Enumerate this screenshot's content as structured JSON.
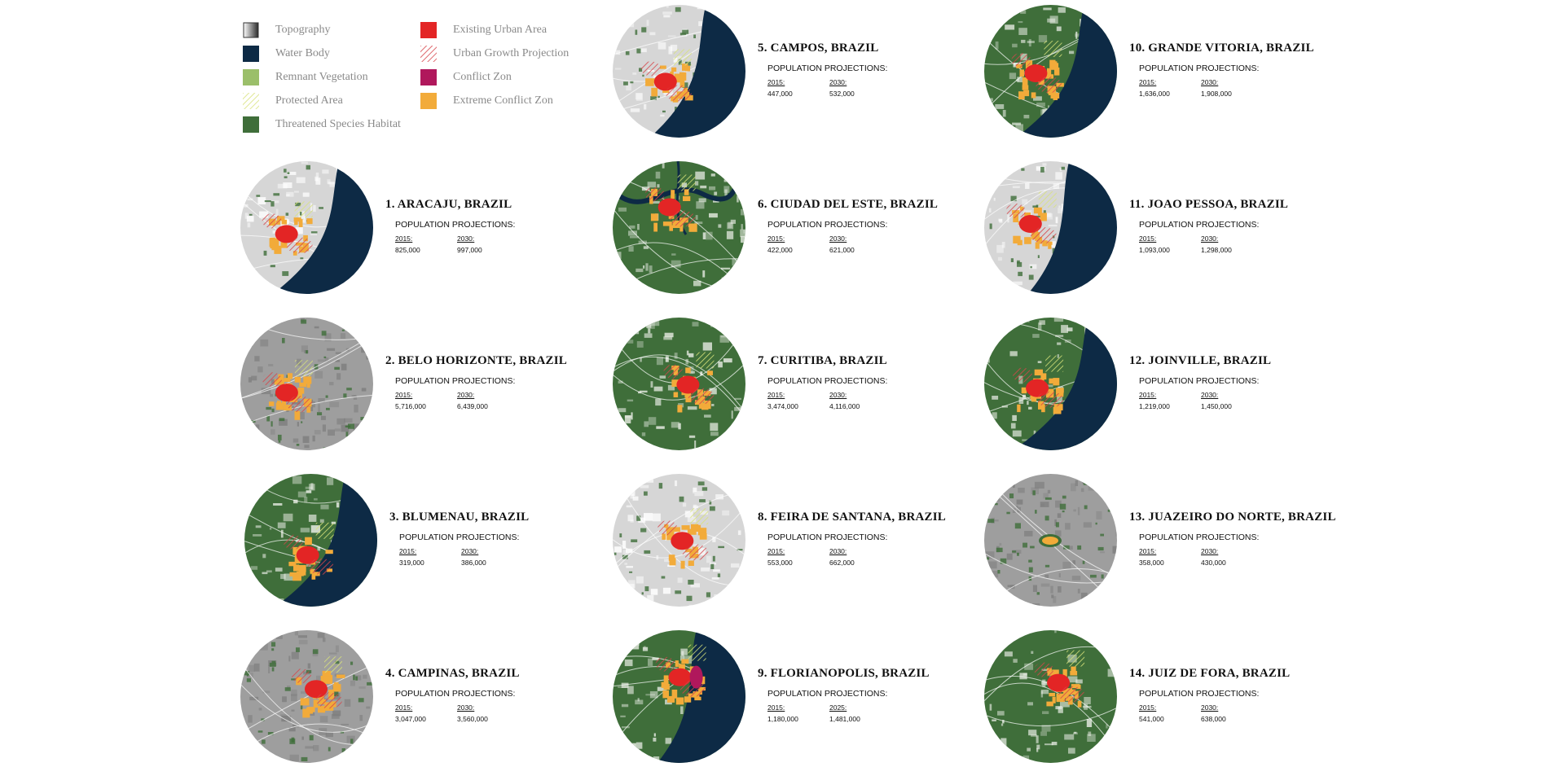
{
  "legend": [
    {
      "label": "Topography",
      "icon": "topography-swatch",
      "color": "#9a9a9a"
    },
    {
      "label": "Water Body",
      "icon": "water-swatch",
      "color": "#0d2a45"
    },
    {
      "label": "Remnant Vegetation",
      "icon": "vegetation-swatch",
      "color": "#9bbf6a"
    },
    {
      "label": "Protected Area",
      "icon": "hatch-yellowgreen-swatch",
      "color": "#d8e27a"
    },
    {
      "label": "Threatened Species Habitat",
      "icon": "habitat-swatch",
      "color": "#3f6e3a"
    },
    {
      "label": "Existing Urban Area",
      "icon": "urban-swatch",
      "color": "#e32525"
    },
    {
      "label": "Urban Growth Projection",
      "icon": "hatch-red-swatch",
      "color": "#d6454a"
    },
    {
      "label": "Conflict Zon",
      "icon": "conflict-swatch",
      "color": "#b0185c"
    },
    {
      "label": "Extreme Conflict Zon",
      "icon": "extreme-conflict-swatch",
      "color": "#f2ab3a"
    }
  ],
  "cities": [
    {
      "title": "1. ARACAJU, BRAZIL",
      "subtitle": "POPULATION PROJECTIONS:",
      "y1": "2015:",
      "v1": "825,000",
      "y2": "2030:",
      "v2": "997,000",
      "style": "coastal-right-grey"
    },
    {
      "title": "2. BELO HORIZONTE, BRAZIL",
      "subtitle": "POPULATION PROJECTIONS:",
      "y1": "2015:",
      "v1": "5,716,000",
      "y2": "2030:",
      "v2": "6,439,000",
      "style": "inland-grey-urban"
    },
    {
      "title": "3. BLUMENAU, BRAZIL",
      "subtitle": "POPULATION PROJECTIONS:",
      "y1": "2015:",
      "v1": "319,000",
      "y2": "2030:",
      "v2": "386,000",
      "style": "coastal-right-green"
    },
    {
      "title": "4. CAMPINAS, BRAZIL",
      "subtitle": "POPULATION PROJECTIONS:",
      "y1": "2015:",
      "v1": "3,047,000",
      "y2": "2030:",
      "v2": "3,560,000",
      "style": "inland-grey-urban"
    },
    {
      "title": "5. CAMPOS, BRAZIL",
      "subtitle": "POPULATION PROJECTIONS:",
      "y1": "2015:",
      "v1": "447,000",
      "y2": "2030:",
      "v2": "532,000",
      "style": "coastal-right-grey"
    },
    {
      "title": "6. CIUDAD DEL ESTE, BRAZIL",
      "subtitle": "POPULATION PROJECTIONS:",
      "y1": "2015:",
      "v1": "422,000",
      "y2": "2030:",
      "v2": "621,000",
      "style": "inland-green-river"
    },
    {
      "title": "7. CURITIBA, BRAZIL",
      "subtitle": "POPULATION PROJECTIONS:",
      "y1": "2015:",
      "v1": "3,474,000",
      "y2": "2030:",
      "v2": "4,116,000",
      "style": "inland-green-urban"
    },
    {
      "title": "8. FEIRA DE SANTANA, BRAZIL",
      "subtitle": "POPULATION PROJECTIONS:",
      "y1": "2015:",
      "v1": "553,000",
      "y2": "2030:",
      "v2": "662,000",
      "style": "inland-light-grey"
    },
    {
      "title": "9. FLORIANOPOLIS, BRAZIL",
      "subtitle": "POPULATION PROJECTIONS:",
      "y1": "2015:",
      "v1": "1,180,000",
      "y2": "2025:",
      "v2": "1,481,000",
      "style": "coastal-right-green"
    },
    {
      "title": "10. GRANDE VITORIA, BRAZIL",
      "subtitle": "POPULATION PROJECTIONS:",
      "y1": "2015:",
      "v1": "1,636,000",
      "y2": "2030:",
      "v2": "1,908,000",
      "style": "coastal-right-green"
    },
    {
      "title": "11. JOAO PESSOA, BRAZIL",
      "subtitle": "POPULATION PROJECTIONS:",
      "y1": "2015:",
      "v1": "1,093,000",
      "y2": "2030:",
      "v2": "1,298,000",
      "style": "coastal-right-grey"
    },
    {
      "title": "12. JOINVILLE, BRAZIL",
      "subtitle": "POPULATION PROJECTIONS:",
      "y1": "2015:",
      "v1": "1,219,000",
      "y2": "2030:",
      "v2": "1,450,000",
      "style": "coastal-right-green"
    },
    {
      "title": "13. JUAZEIRO DO NORTE, BRAZIL",
      "subtitle": "POPULATION PROJECTIONS:",
      "y1": "2015:",
      "v1": "358,000",
      "y2": "2030:",
      "v2": "430,000",
      "style": "inland-grey-small"
    },
    {
      "title": "14. JUIZ DE FORA, BRAZIL",
      "subtitle": "POPULATION PROJECTIONS:",
      "y1": "2015:",
      "v1": "541,000",
      "y2": "2030:",
      "v2": "638,000",
      "style": "inland-grey-green"
    }
  ]
}
